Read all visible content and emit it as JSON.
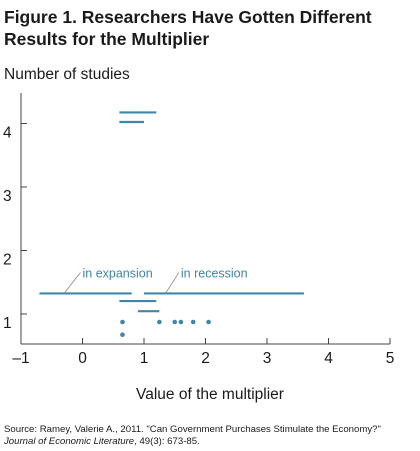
{
  "chart_data": {
    "type": "scatter",
    "title": "Figure 1. Researchers Have Gotten Different Results for the Multiplier",
    "ylabel": "Number of studies",
    "xlabel": "Value of the multiplier",
    "xlim": [
      -1,
      5
    ],
    "x_ticks": [
      "–1",
      "0",
      "1",
      "2",
      "3",
      "4",
      "5"
    ],
    "y_ticks": [
      "1",
      "2",
      "3",
      "4"
    ],
    "grid": "none",
    "color": "#3f86a8",
    "point_estimates": [
      {
        "x": 0.65,
        "y": 0.8
      },
      {
        "x": 0.65,
        "y": 1.0
      },
      {
        "x": 1.25,
        "y": 1.0
      },
      {
        "x": 1.5,
        "y": 1.0
      },
      {
        "x": 1.6,
        "y": 1.0
      },
      {
        "x": 1.8,
        "y": 1.0
      },
      {
        "x": 2.05,
        "y": 1.0
      }
    ],
    "ranges": [
      {
        "x1": 0.6,
        "x2": 1.2,
        "y": 4.3
      },
      {
        "x1": 0.6,
        "x2": 1.0,
        "y": 4.15
      },
      {
        "x1": -0.7,
        "x2": 0.8,
        "y": 1.45
      },
      {
        "x1": 1.0,
        "x2": 3.6,
        "y": 1.45
      },
      {
        "x1": 0.6,
        "x2": 1.2,
        "y": 1.33
      },
      {
        "x1": 0.9,
        "x2": 1.25,
        "y": 1.17
      }
    ],
    "annotations": [
      {
        "text": "in expansion",
        "x": 0.0,
        "y": 1.7,
        "leader_to": {
          "x": -0.3,
          "y": 1.45
        }
      },
      {
        "text": "in recession",
        "x": 1.6,
        "y": 1.7,
        "leader_to": {
          "x": 1.35,
          "y": 1.45
        }
      }
    ]
  },
  "source": {
    "text": "Source: Ramey, Valerie A., 2011. \"Can Government Purchases Stimulate the Economy?\"",
    "journal": "Journal of Economic Literature",
    "citation": ", 49(3): 673-85."
  }
}
